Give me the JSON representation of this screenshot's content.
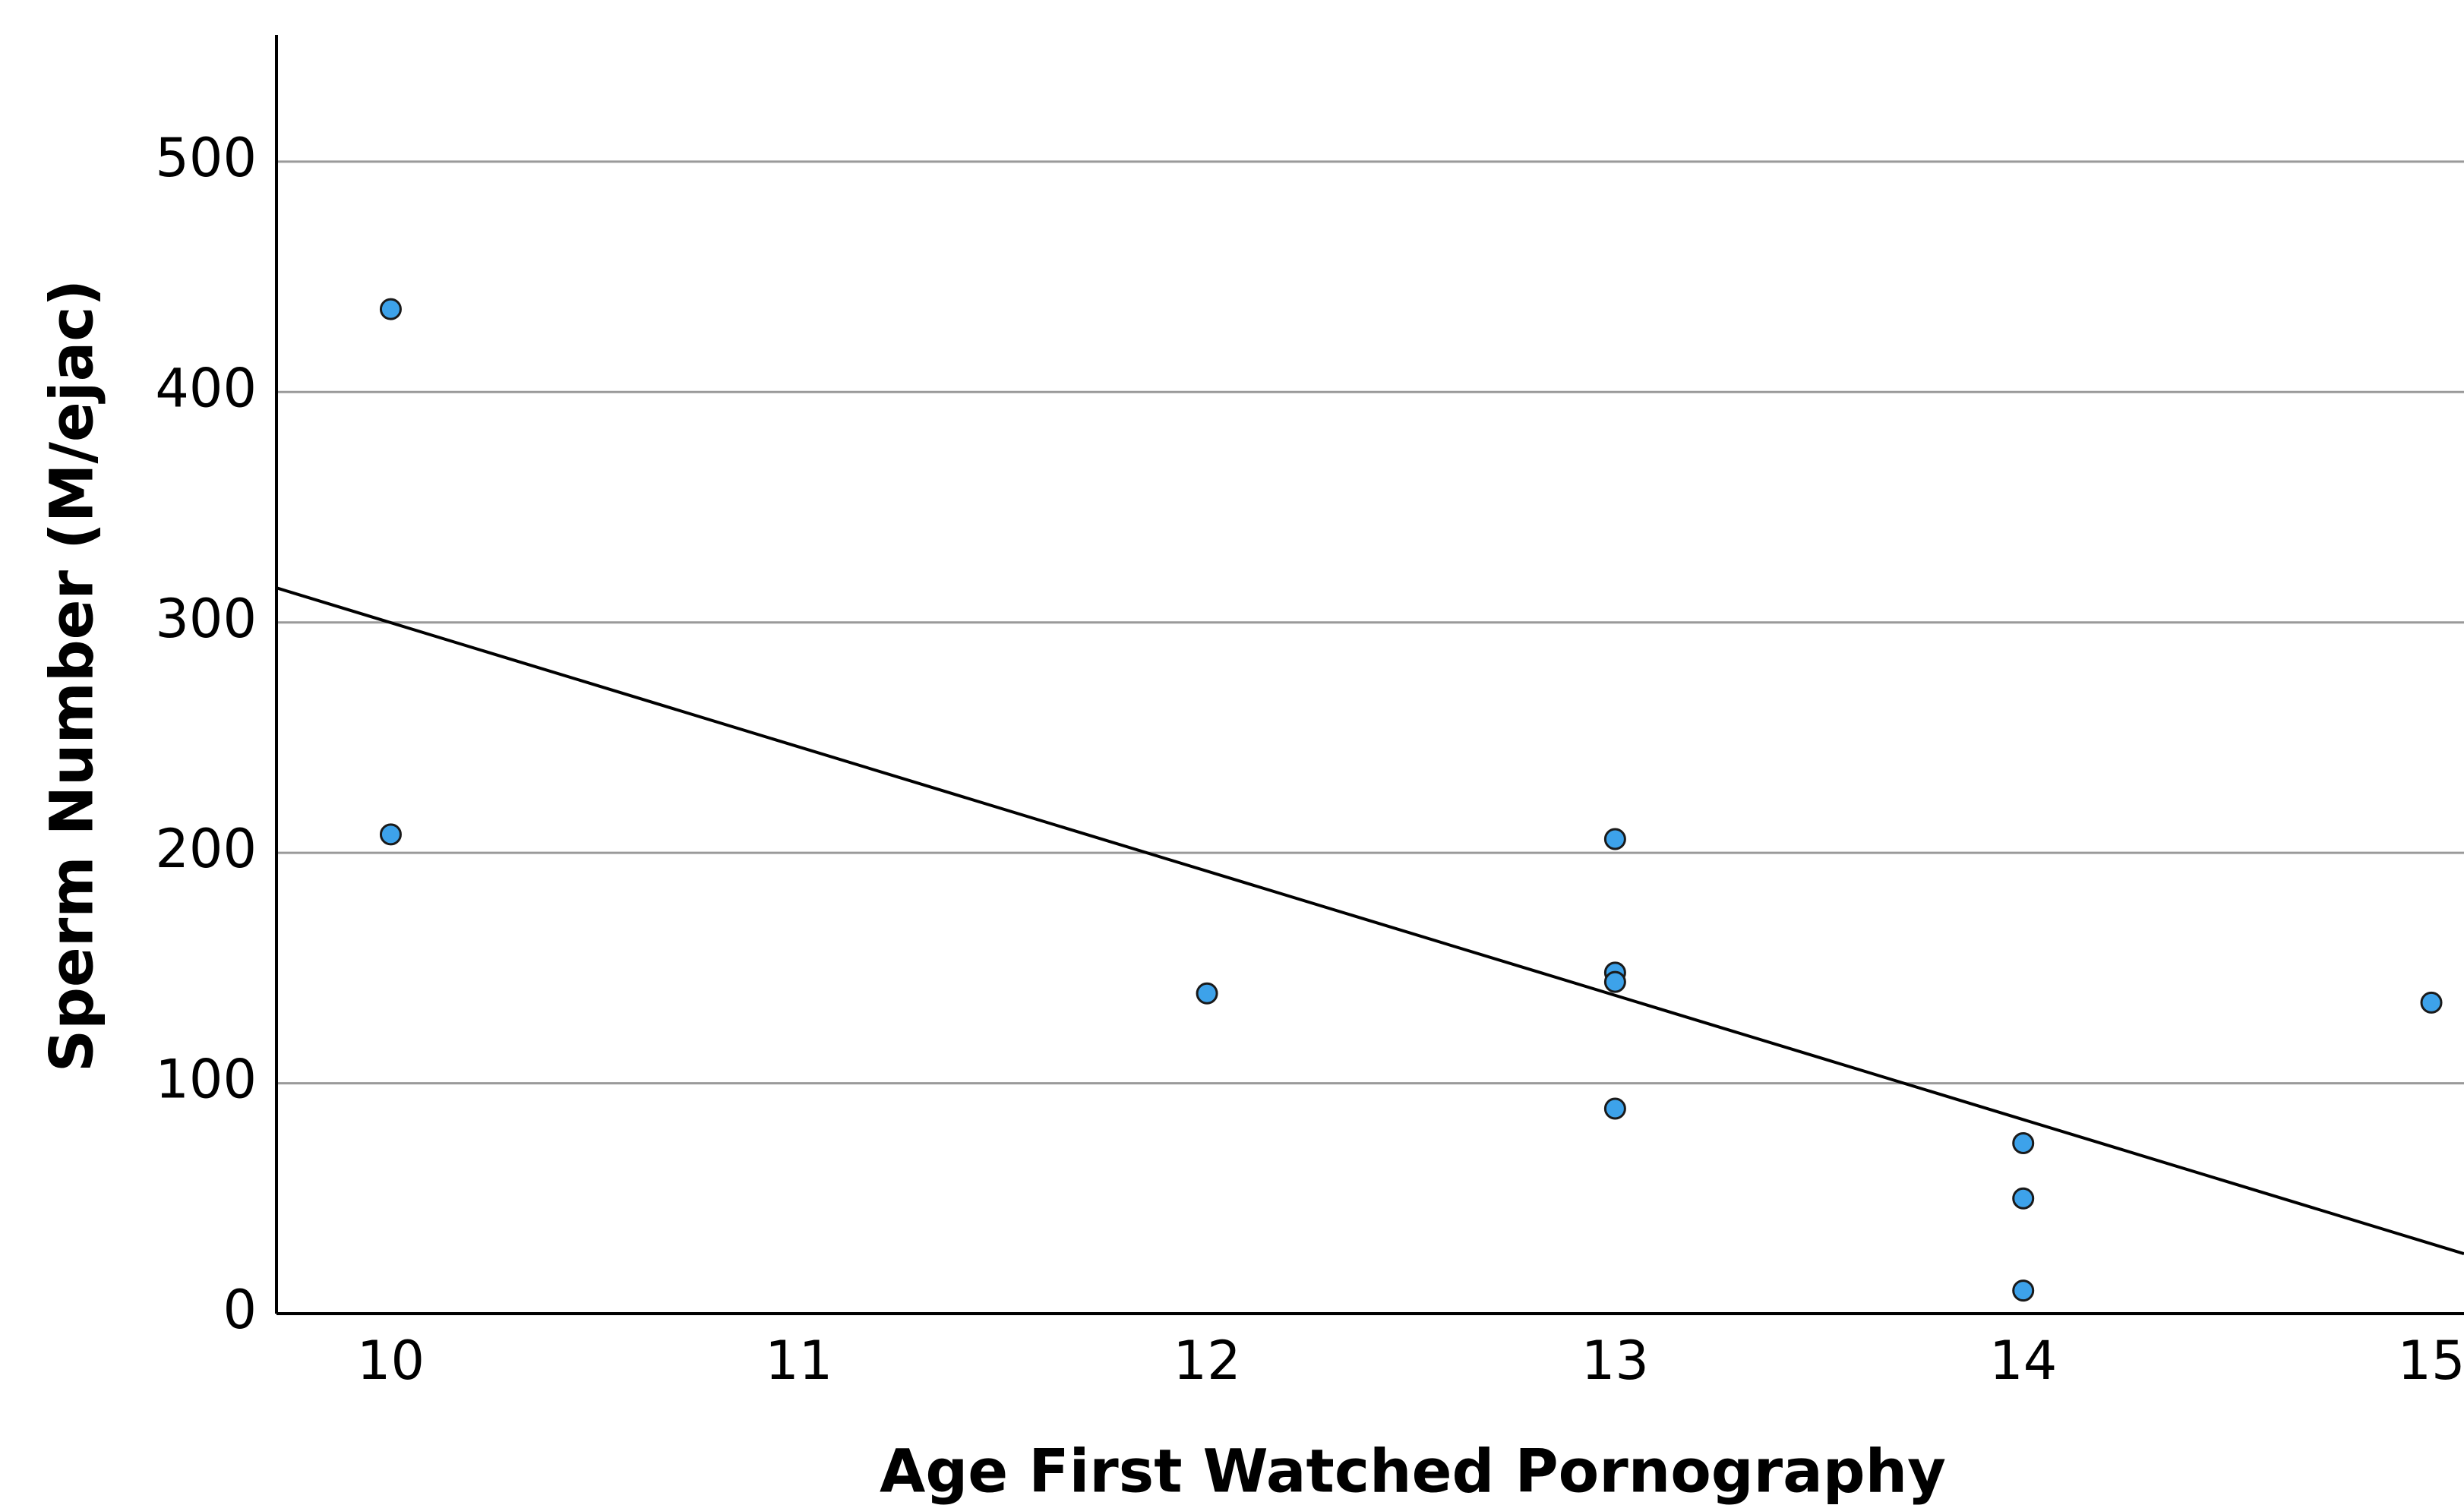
{
  "chart_data": {
    "type": "scatter",
    "x_label": "Age First Watched Pornography",
    "y_label": "Sperm Number (M/ejac)",
    "series": [
      {
        "color": "#3da2ea",
        "x": [
          10,
          10,
          12,
          13,
          13,
          13,
          13,
          14,
          14,
          14,
          15
        ],
        "values": [
          436,
          208,
          139,
          206,
          148,
          144,
          89,
          74,
          50,
          10,
          135
        ]
      }
    ],
    "regression_line": {
      "x": [
        9.72,
        15.08
      ],
      "y": [
        315,
        26
      ],
      "color": "#000000"
    },
    "xlim": [
      9.72,
      15.08
    ],
    "xticks": [
      10,
      11,
      12,
      13,
      14,
      15
    ],
    "ylim": [
      0,
      555
    ],
    "yticks": [
      0,
      100,
      200,
      300,
      400,
      500
    ],
    "grid": true
  }
}
